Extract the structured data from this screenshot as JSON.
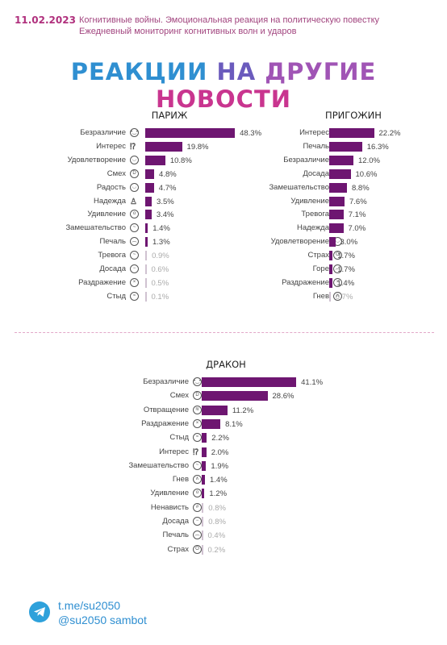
{
  "header": {
    "date": "11.02.2023",
    "line1": "Когнитивные войны. Эмоциональная реакция на политическую повестку",
    "line2": "Ежедневный мониторинг когнитивных волн и ударов"
  },
  "main_title": {
    "w1": "РЕАКЦИИ",
    "w2": "НА",
    "w3": "ДРУГИЕ",
    "w4": "НОВОСТИ"
  },
  "colors": {
    "bar": "#6e1671",
    "bar_light": "#d0c2d1",
    "title_blue": "#2f8fd1",
    "title_pink": "#c9358f"
  },
  "chart_data": [
    {
      "type": "bar",
      "title": "ПАРИЖ",
      "orientation": "horizontal",
      "categories": [
        "Безразличие",
        "Интерес",
        "Удовлетворение",
        "Смех",
        "Радость",
        "Надежда",
        "Удивление",
        "Замешательство",
        "Печаль",
        "Тревога",
        "Досада",
        "Раздражение",
        "Стыд"
      ],
      "icons": [
        "neutral-face-icon",
        "exclamation-question-icon",
        "satisfied-face-icon",
        "laughing-face-icon",
        "happy-face-icon",
        "hope-figure-icon",
        "surprised-face-icon",
        "confused-face-icon",
        "sad-face-icon",
        "anxious-face-icon",
        "annoyed-face-icon",
        "irritated-face-icon",
        "ashamed-face-icon"
      ],
      "values": [
        48.3,
        19.8,
        10.8,
        4.8,
        4.7,
        3.5,
        3.4,
        1.4,
        1.3,
        0.9,
        0.6,
        0.5,
        0.1
      ],
      "labels": [
        "48.3%",
        "19.8%",
        "10.8%",
        "4.8%",
        "4.7%",
        "3.5%",
        "3.4%",
        "1.4%",
        "1.3%",
        "0.9%",
        "0.6%",
        "0.5%",
        "0.1%"
      ]
    },
    {
      "type": "bar",
      "title": "ПРИГОЖИН",
      "orientation": "horizontal",
      "categories": [
        "Интерес",
        "Печаль",
        "Безразличие",
        "Досада",
        "Замешательство",
        "Удивление",
        "Тревога",
        "Надежда",
        "Удовлетворение",
        "Страх",
        "Горе",
        "Раздражение",
        "Гнев"
      ],
      "icons": [
        "exclamation-question-icon",
        "sad-face-icon",
        "neutral-face-icon",
        "annoyed-face-icon",
        "confused-face-icon",
        "surprised-face-icon",
        "anxious-face-icon",
        "hope-figure-icon",
        "satisfied-face-icon",
        "fear-face-icon",
        "grief-face-icon",
        "irritated-face-icon",
        "angry-face-icon"
      ],
      "values": [
        22.2,
        16.3,
        12.0,
        10.6,
        8.8,
        7.6,
        7.1,
        7.0,
        3.0,
        1.7,
        1.7,
        1.4,
        0.7
      ],
      "labels": [
        "22.2%",
        "16.3%",
        "12.0%",
        "10.6%",
        "8.8%",
        "7.6%",
        "7.1%",
        "7.0%",
        "3.0%",
        "1.7%",
        "1.7%",
        "1.4%",
        "0.7%"
      ]
    },
    {
      "type": "bar",
      "title": "ДРАКОН",
      "orientation": "horizontal",
      "categories": [
        "Безразличие",
        "Смех",
        "Отвращение",
        "Раздражение",
        "Стыд",
        "Интерес",
        "Замешательство",
        "Гнев",
        "Удивление",
        "Ненависть",
        "Досада",
        "Печаль",
        "Страх"
      ],
      "icons": [
        "neutral-face-icon",
        "laughing-face-icon",
        "disgusted-face-icon",
        "irritated-face-icon",
        "ashamed-face-icon",
        "exclamation-question-icon",
        "confused-face-icon",
        "angry-face-icon",
        "surprised-face-icon",
        "hateful-face-icon",
        "annoyed-face-icon",
        "sad-face-icon",
        "fear-face-icon"
      ],
      "values": [
        41.1,
        28.6,
        11.2,
        8.1,
        2.2,
        2.0,
        1.9,
        1.4,
        1.2,
        0.8,
        0.8,
        0.4,
        0.2
      ],
      "labels": [
        "41.1%",
        "28.6%",
        "11.2%",
        "8.1%",
        "2.2%",
        "2.0%",
        "1.9%",
        "1.4%",
        "1.2%",
        "0.8%",
        "0.8%",
        "0.4%",
        "0.2%"
      ]
    }
  ],
  "footer": {
    "link1": "t.me/su2050",
    "link2": "@su2050 sambot",
    "icon": "telegram-icon"
  }
}
